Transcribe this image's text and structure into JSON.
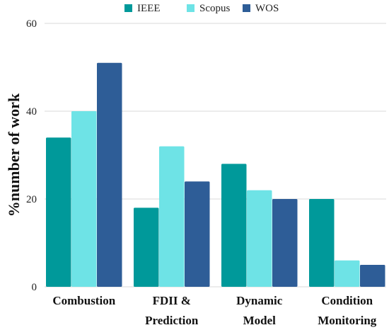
{
  "chart_data": {
    "type": "bar",
    "title": "",
    "xlabel": "",
    "ylabel": "%number of work",
    "ylim": [
      0,
      60
    ],
    "yticks": [
      0,
      20,
      40,
      60
    ],
    "grid": true,
    "legend_position": "top-center",
    "categories": [
      [
        "Combustion"
      ],
      [
        "FDII &",
        "Prediction"
      ],
      [
        "Dynamic",
        "Model"
      ],
      [
        "Condition",
        "Monitoring"
      ]
    ],
    "series": [
      {
        "name": "IEEE",
        "color": "#00999a",
        "values": [
          34,
          18,
          28,
          20
        ]
      },
      {
        "name": "Scopus",
        "color": "#6ee3e6",
        "values": [
          40,
          32,
          22,
          6
        ]
      },
      {
        "name": "WOS",
        "color": "#2e5d97",
        "values": [
          51,
          24,
          20,
          5
        ]
      }
    ]
  }
}
